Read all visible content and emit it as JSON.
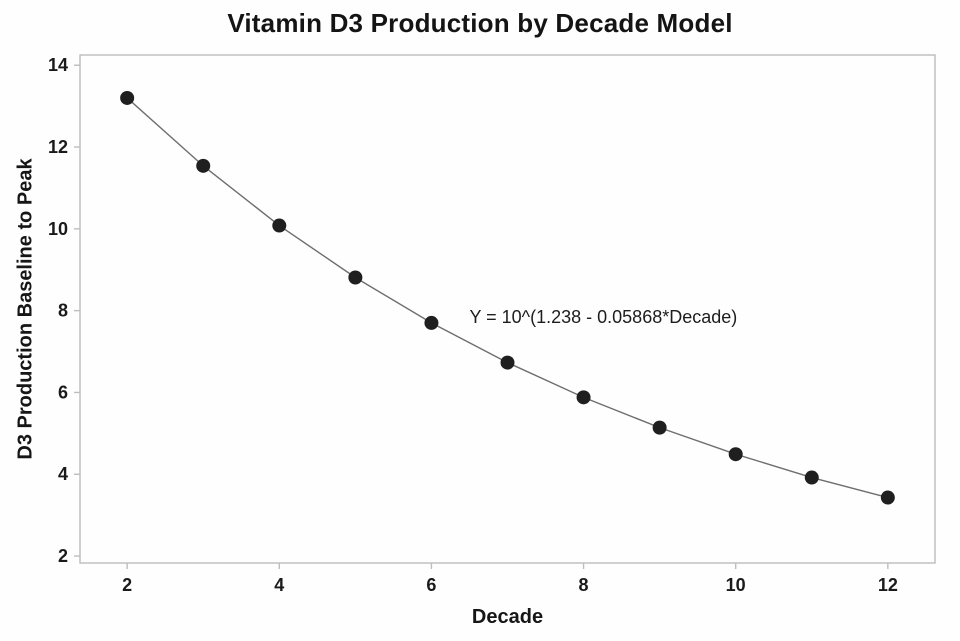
{
  "chart_data": {
    "type": "line",
    "title": "Vitamin D3 Production by Decade Model",
    "xlabel": "Decade",
    "ylabel": "D3 Production Baseline to Peak",
    "x": [
      2,
      3,
      4,
      5,
      6,
      7,
      8,
      9,
      10,
      11,
      12
    ],
    "y": [
      13.2,
      11.54,
      10.08,
      8.81,
      7.7,
      6.73,
      5.88,
      5.14,
      4.49,
      3.92,
      3.43
    ],
    "annotation": {
      "text": "Y = 10^(1.238 - 0.05868*Decade)",
      "x": 6.5,
      "y": 7.82
    },
    "xlim": [
      1.38,
      12.62
    ],
    "ylim": [
      1.83,
      14.25
    ],
    "x_ticks": [
      2,
      4,
      6,
      8,
      10,
      12
    ],
    "y_ticks": [
      2,
      4,
      6,
      8,
      10,
      12,
      14
    ],
    "grid": false,
    "legend": "none",
    "marker_radius": 7,
    "colors": {
      "point": "#1f1f1f",
      "line": "#6e6e6e",
      "frame": "#bdbdbd",
      "text": "#1a1a1a",
      "background": "#fefefe"
    }
  }
}
